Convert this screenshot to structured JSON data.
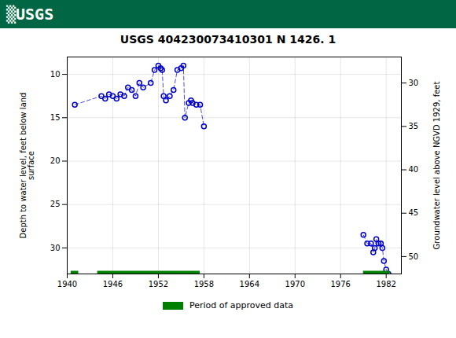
{
  "chart_data": {
    "type": "line",
    "title": "USGS 404230073410301 N  1426. 1",
    "annotations": [
      {
        "text": "▒USGS",
        "color": "#ffffff"
      }
    ],
    "ylabel": "Depth to water level, feet below land\nsurface",
    "y2label": "Groundwater level above NGVD 1929, feet",
    "xlim": [
      1940,
      1984
    ],
    "xticks": [
      1940,
      1946,
      1952,
      1958,
      1964,
      1970,
      1976,
      1982
    ],
    "ylim": [
      33,
      8
    ],
    "yticks": [
      10,
      15,
      20,
      25,
      30
    ],
    "y2lim": [
      52,
      27
    ],
    "y2ticks": [
      50,
      45,
      40,
      35,
      30
    ],
    "grid": true,
    "legend": "bottom",
    "series": [
      {
        "type": "line",
        "color": "#0000cc",
        "marker": "o",
        "line_style": "dashed",
        "x": [
          1941.0,
          1944.5,
          1945.0,
          1945.5,
          1946.0,
          1946.5,
          1947.0,
          1947.5,
          1948.0,
          1948.5,
          1949.0,
          1949.5,
          1950.0,
          1951.0,
          1951.5,
          1952.0,
          1952.3,
          1952.5,
          1952.7,
          1953.0,
          1953.5,
          1954.0,
          1954.5,
          1955.0,
          1955.3,
          1955.5,
          1956.0,
          1956.3,
          1956.5,
          1957.0,
          1957.5,
          1958.0
        ],
        "values": [
          13.5,
          12.5,
          12.8,
          12.3,
          12.5,
          12.8,
          12.3,
          12.5,
          11.5,
          11.8,
          12.5,
          11.0,
          11.5,
          11.0,
          9.5,
          9.0,
          9.3,
          9.5,
          12.5,
          13.0,
          12.5,
          11.8,
          9.5,
          9.3,
          9.0,
          15.0,
          13.3,
          13.0,
          13.3,
          13.5,
          13.5,
          16.0
        ]
      },
      {
        "type": "line",
        "color": "#0000cc",
        "marker": "o",
        "line_style": "dashed",
        "x": [
          1979.0,
          1979.5,
          1980.0,
          1980.3,
          1980.5,
          1980.7,
          1981.0,
          1981.3,
          1981.5,
          1981.7,
          1982.0,
          1982.3
        ],
        "values": [
          28.5,
          29.5,
          29.5,
          30.5,
          30.0,
          29.0,
          29.5,
          29.5,
          30.0,
          31.5,
          32.5,
          33.0
        ]
      },
      {
        "name": "Period of approved data",
        "type": "bar",
        "orientation": "horizontal",
        "color": "#008000",
        "segments": [
          [
            1940.5,
            1941.5
          ],
          [
            1944.0,
            1957.5
          ],
          [
            1979.0,
            1982.5
          ]
        ]
      }
    ]
  }
}
